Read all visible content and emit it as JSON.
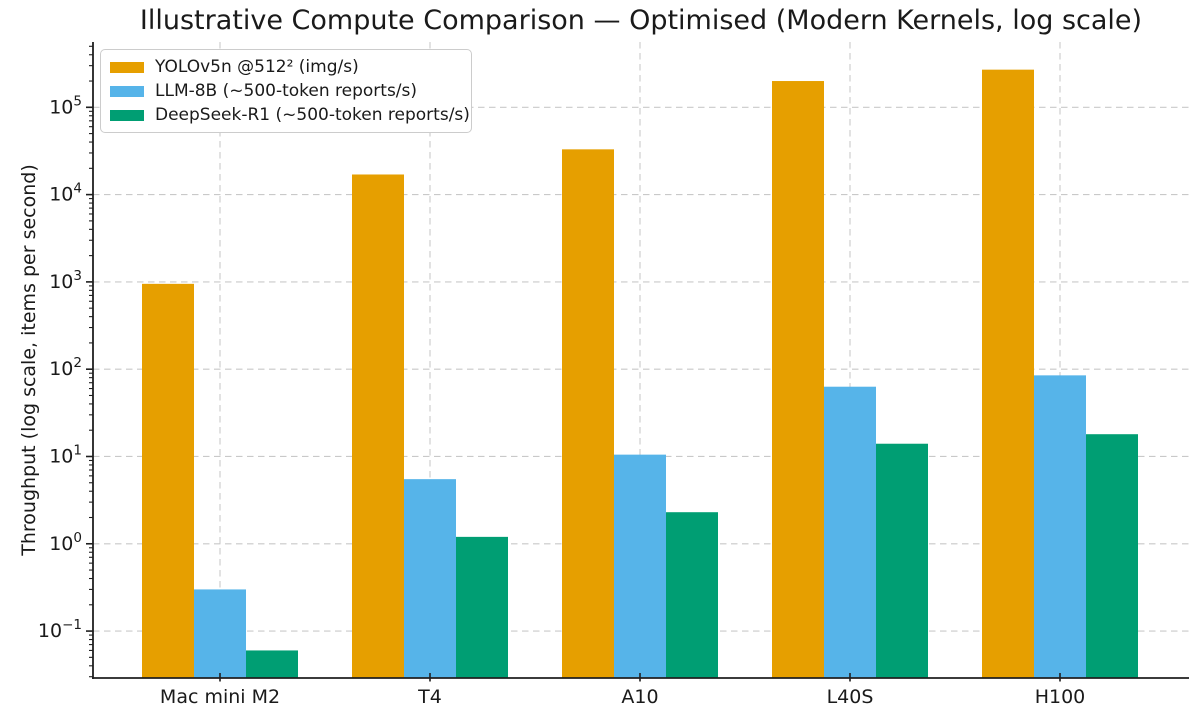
{
  "chart_data": {
    "type": "bar",
    "title": "Illustrative Compute Comparison — Optimised (Modern Kernels, log scale)",
    "ylabel": "Throughput (log scale, items per second)",
    "xlabel": "",
    "yscale": "log",
    "grid": true,
    "legend_position": "upper left",
    "ylim": [
      0.029,
      560000
    ],
    "ytick_labels": [
      "10^5",
      "10^4",
      "10^3",
      "10^2",
      "10^1",
      "10^0",
      "10^-1"
    ],
    "categories": [
      "Mac mini M2",
      "T4",
      "A10",
      "L40S",
      "H100"
    ],
    "series": [
      {
        "name": "YOLOv5n @512² (img/s)",
        "color": "#E69F00",
        "values": [
          950,
          17000,
          33000,
          200000,
          270000
        ]
      },
      {
        "name": "LLM-8B (~500-token reports/s)",
        "color": "#56B4E9",
        "values": [
          0.3,
          5.5,
          10.5,
          63,
          85
        ]
      },
      {
        "name": "DeepSeek-R1 (~500-token reports/s)",
        "color": "#009E73",
        "values": [
          0.06,
          1.2,
          2.3,
          14,
          18
        ]
      }
    ]
  },
  "colors": {
    "background": "#ffffff",
    "text": "#1a1a1a",
    "spine": "#1f1f1f",
    "grid": "#c9c9c9"
  }
}
